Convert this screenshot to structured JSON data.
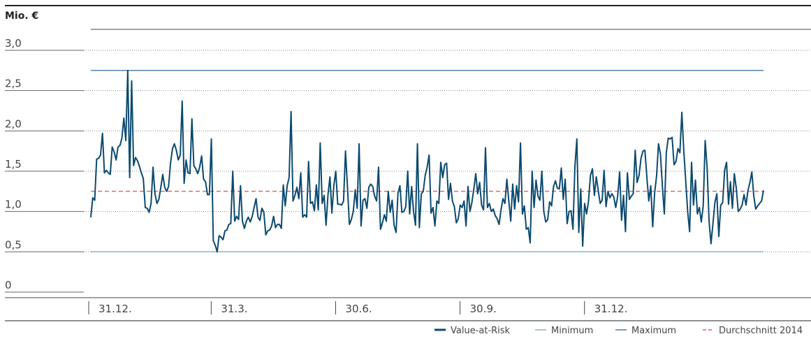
{
  "chart_data": {
    "type": "line",
    "ylabel": "Mio. €",
    "ylim": [
      0,
      3.0
    ],
    "yticks": [
      {
        "value": 0,
        "label": "0"
      },
      {
        "value": 0.5,
        "label": "0,5"
      },
      {
        "value": 1.0,
        "label": "1,0"
      },
      {
        "value": 1.5,
        "label": "1,5"
      },
      {
        "value": 2.0,
        "label": "2,0"
      },
      {
        "value": 2.5,
        "label": "2,5"
      },
      {
        "value": 3.0,
        "label": "3,0"
      }
    ],
    "xticks": [
      {
        "index": 0,
        "label": "31.12."
      },
      {
        "index": 63,
        "label": "31.3."
      },
      {
        "index": 127,
        "label": "30.6."
      },
      {
        "index": 191,
        "label": "30.9."
      },
      {
        "index": 255,
        "label": "31.12."
      }
    ],
    "grid": true,
    "legend_position": "bottom-right",
    "series": [
      {
        "name": "Value-at-Risk",
        "color": "#0b4a6f",
        "style": "solid",
        "values": [
          0.93,
          1.17,
          1.14,
          1.65,
          1.66,
          1.7,
          1.97,
          1.48,
          1.51,
          1.48,
          1.46,
          1.8,
          1.74,
          1.64,
          1.8,
          1.82,
          1.91,
          2.16,
          1.88,
          2.75,
          1.42,
          2.62,
          1.57,
          1.67,
          1.63,
          1.56,
          1.48,
          1.41,
          1.05,
          1.04,
          0.99,
          1.1,
          1.55,
          1.22,
          1.1,
          1.15,
          1.3,
          1.46,
          1.3,
          1.25,
          1.31,
          1.6,
          1.78,
          1.84,
          1.76,
          1.64,
          1.7,
          2.37,
          1.35,
          1.64,
          1.48,
          1.47,
          2.15,
          1.57,
          1.53,
          1.47,
          1.55,
          1.69,
          1.4,
          1.37,
          1.21,
          1.21,
          1.9,
          0.64,
          0.58,
          0.5,
          0.7,
          0.68,
          0.65,
          0.76,
          0.77,
          0.84,
          0.85,
          1.5,
          0.88,
          0.94,
          0.9,
          1.32,
          0.88,
          0.79,
          0.88,
          0.93,
          0.87,
          0.94,
          1.05,
          1.16,
          0.93,
          0.89,
          1.04,
          0.99,
          0.71,
          0.76,
          0.77,
          0.82,
          0.94,
          0.8,
          0.84,
          0.84,
          0.79,
          1.33,
          1.07,
          1.32,
          1.42,
          2.24,
          1.13,
          1.2,
          1.3,
          1.16,
          1.48,
          0.93,
          0.96,
          0.93,
          1.62,
          1.1,
          1.12,
          1.01,
          1.33,
          1.02,
          1.85,
          1.1,
          1.2,
          0.83,
          1.21,
          1.43,
          0.98,
          1.32,
          1.5,
          1.09,
          1.09,
          1.08,
          1.13,
          1.75,
          1.31,
          0.84,
          0.9,
          1.0,
          1.27,
          1.04,
          1.84,
          0.82,
          1.14,
          1.16,
          1.04,
          1.3,
          1.34,
          1.31,
          1.19,
          1.13,
          1.55,
          0.78,
          0.86,
          0.96,
          0.88,
          1.25,
          0.99,
          1.14,
          0.83,
          0.74,
          1.23,
          1.32,
          0.99,
          1.0,
          1.06,
          1.5,
          0.97,
          1.31,
          1.0,
          0.83,
          1.84,
          0.8,
          1.22,
          1.25,
          1.45,
          1.55,
          1.7,
          0.98,
          1.05,
          0.82,
          1.13,
          1.1,
          1.61,
          1.42,
          1.58,
          1.6,
          1.15,
          1.35,
          1.13,
          1.06,
          0.86,
          0.91,
          1.08,
          1.05,
          1.13,
          0.82,
          1.31,
          1.0,
          1.11,
          1.28,
          1.47,
          1.22,
          1.36,
          1.08,
          1.02,
          1.79,
          1.05,
          1.1,
          1.0,
          1.03,
          0.95,
          0.91,
          0.84,
          1.02,
          1.16,
          1.1,
          1.4,
          1.13,
          0.88,
          1.34,
          1.03,
          1.32,
          1.12,
          1.85,
          0.97,
          1.07,
          0.78,
          0.8,
          0.61,
          1.5,
          1.05,
          1.39,
          1.19,
          1.14,
          1.5,
          1.0,
          0.87,
          0.9,
          1.12,
          1.07,
          1.31,
          1.38,
          1.29,
          1.28,
          1.54,
          1.15,
          1.4,
          0.85,
          1.0,
          1.01,
          0.78,
          1.56,
          1.9,
          0.74,
          1.28,
          0.57,
          1.1,
          0.97,
          1.13,
          1.45,
          1.53,
          1.2,
          1.43,
          1.26,
          1.1,
          1.14,
          1.51,
          1.06,
          1.25,
          1.17,
          1.22,
          1.18,
          1.05,
          1.19,
          1.49,
          0.89,
          1.2,
          0.75,
          1.48,
          1.15,
          1.19,
          1.22,
          1.76,
          1.36,
          1.45,
          1.66,
          1.75,
          1.76,
          1.43,
          1.13,
          1.32,
          0.81,
          1.23,
          1.44,
          1.84,
          1.71,
          1.31,
          0.97,
          1.73,
          1.91,
          1.9,
          1.92,
          1.58,
          1.62,
          1.78,
          1.73,
          2.23,
          1.75,
          1.38,
          1.0,
          0.75,
          1.61,
          1.08,
          1.39,
          0.97,
          1.05,
          0.87,
          1.07,
          1.88,
          1.54,
          0.88,
          0.6,
          0.85,
          1.11,
          1.22,
          0.69,
          1.08,
          1.11,
          1.51,
          1.61,
          1.09,
          1.37,
          1.04,
          1.47,
          1.29,
          1.0,
          1.03,
          1.08,
          1.21,
          1.08,
          1.26,
          1.36,
          1.49,
          1.19,
          1.03,
          1.07,
          1.1,
          1.13,
          1.26
        ]
      }
    ],
    "reference_lines": [
      {
        "name": "Minimum",
        "value": 0.5,
        "color": "#6a9fbf",
        "style": "solid"
      },
      {
        "name": "Maximum",
        "value": 2.75,
        "color": "#1f5a8c",
        "style": "solid"
      },
      {
        "name": "Durchschnitt 2014",
        "value": 1.25,
        "color": "#e03a3a",
        "style": "dashed"
      }
    ],
    "legend": [
      {
        "label": "Value-at-Risk",
        "color": "#0b4a6f",
        "style": "solid-thick"
      },
      {
        "label": "Minimum",
        "color": "#6a9fbf",
        "style": "solid"
      },
      {
        "label": "Maximum",
        "color": "#1f5a8c",
        "style": "solid"
      },
      {
        "label": "Durchschnitt 2014",
        "color": "#e03a3a",
        "style": "dashed"
      }
    ]
  }
}
